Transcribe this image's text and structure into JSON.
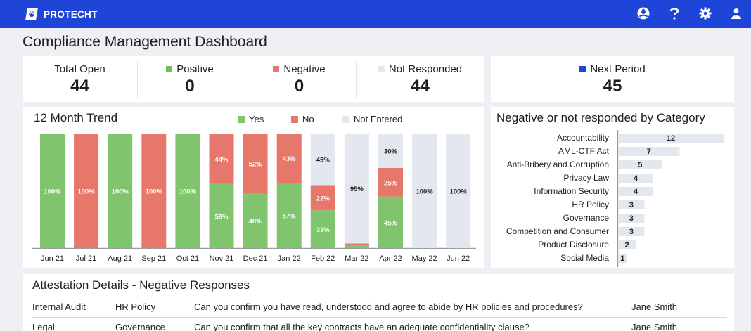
{
  "app": {
    "brand": "PROTECHT"
  },
  "header_icons": [
    "user-circle-icon",
    "help-icon",
    "gear-icon",
    "person-icon"
  ],
  "page": {
    "title": "Compliance Management Dashboard"
  },
  "summary": {
    "total_open": {
      "label": "Total Open",
      "value": "44"
    },
    "positive": {
      "label": "Positive",
      "value": "0",
      "color": "#6bbf59"
    },
    "negative": {
      "label": "Negative",
      "value": "0",
      "color": "#e8746a"
    },
    "not_responded": {
      "label": "Not Responded",
      "value": "44",
      "color": "#e3e7ee"
    },
    "next_period": {
      "label": "Next Period",
      "value": "45",
      "color": "#1f45d8"
    }
  },
  "trend": {
    "title": "12 Month Trend",
    "legend": {
      "yes": "Yes",
      "no": "No",
      "not_entered": "Not Entered"
    },
    "colors": {
      "yes": "#80c46e",
      "no": "#e8776b",
      "not_entered": "#e3e7ee"
    }
  },
  "category": {
    "title": "Negative or not responded by Category"
  },
  "attestation": {
    "title": "Attestation Details - Negative Responses",
    "rows": [
      {
        "area": "Internal Audit",
        "policy": "HR Policy",
        "question": "Can you confirm you have read, understood and agree to abide by HR policies and procedures?",
        "owner": "Jane Smith"
      },
      {
        "area": "Legal",
        "policy": "Governance",
        "question": "Can you confirm that all the key contracts have an adequate confidentiality clause?",
        "owner": "Jane Smith"
      }
    ]
  },
  "chart_data": [
    {
      "type": "bar",
      "stacked": true,
      "percent": true,
      "categories": [
        "Jun 21",
        "Jul 21",
        "Aug 21",
        "Sep 21",
        "Oct 21",
        "Nov 21",
        "Dec 21",
        "Jan 22",
        "Feb 22",
        "Mar 22",
        "Apr 22",
        "May 22",
        "Jun 22"
      ],
      "series": [
        {
          "name": "Yes",
          "values": [
            100,
            0,
            100,
            0,
            100,
            56,
            48,
            57,
            33,
            2,
            45,
            0,
            0
          ],
          "labels": [
            "100%",
            "",
            "100%",
            "",
            "100%",
            "56%",
            "48%",
            "57%",
            "33%",
            "2%",
            "45%",
            "",
            ""
          ]
        },
        {
          "name": "No",
          "values": [
            0,
            100,
            0,
            100,
            0,
            44,
            52,
            43,
            22,
            2,
            25,
            0,
            0
          ],
          "labels": [
            "",
            "100%",
            "",
            "100%",
            "",
            "44%",
            "52%",
            "43%",
            "22%",
            "2%",
            "25%",
            "",
            ""
          ]
        },
        {
          "name": "Not Entered",
          "values": [
            0,
            0,
            0,
            0,
            0,
            0,
            0,
            0,
            45,
            95,
            30,
            100,
            100
          ],
          "labels": [
            "",
            "",
            "",
            "",
            "",
            "",
            "",
            "",
            "45%",
            "95%",
            "30%",
            "100%",
            "100%"
          ]
        }
      ],
      "ylim": [
        0,
        100
      ],
      "grid": false
    },
    {
      "type": "bar",
      "orientation": "horizontal",
      "categories": [
        "Accountability",
        "AML-CTF Act",
        "Anti-Bribery and Corruption",
        "Privacy Law",
        "Information Security",
        "HR Policy",
        "Governance",
        "Competition and Consumer",
        "Product Disclosure",
        "Social Media"
      ],
      "values": [
        12,
        7,
        5,
        4,
        4,
        3,
        3,
        3,
        2,
        1
      ],
      "xlim": [
        0,
        12
      ],
      "grid": false
    }
  ]
}
